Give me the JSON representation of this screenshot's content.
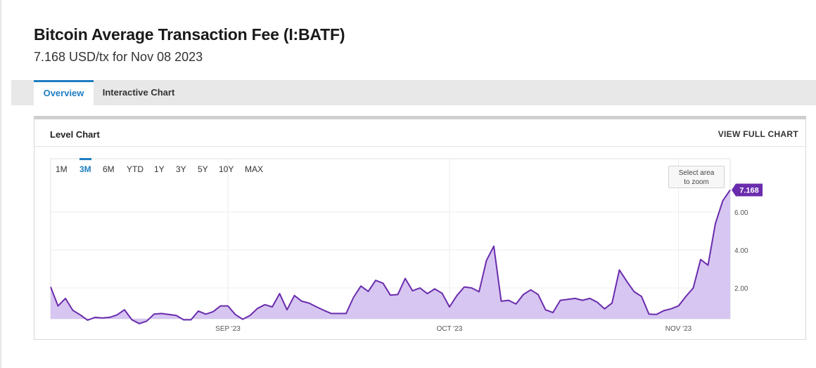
{
  "header": {
    "title": "Bitcoin Average Transaction Fee (I:BATF)",
    "subtitle": "7.168 USD/tx for Nov 08 2023"
  },
  "tabs": [
    {
      "label": "Overview",
      "active": true
    },
    {
      "label": "Interactive Chart",
      "active": false
    }
  ],
  "panel": {
    "title": "Level Chart",
    "view_full_label": "VIEW FULL CHART",
    "ranges": [
      "1M",
      "3M",
      "6M",
      "YTD",
      "1Y",
      "3Y",
      "5Y",
      "10Y",
      "MAX"
    ],
    "active_range": "3M",
    "zoom_hint_line1": "Select area",
    "zoom_hint_line2": "to zoom"
  },
  "colors": {
    "accent": "#1f7ec2",
    "series_line": "#6a2cad",
    "series_fill": "#d6c6f1",
    "last_value_badge": "#6a2cad"
  },
  "chart_data": {
    "type": "area",
    "title": "Level Chart",
    "x_start": "2023-08-08",
    "x_end": "2023-11-08",
    "x_tick_labels": [
      {
        "date": "2023-09-01",
        "label": "SEP '23"
      },
      {
        "date": "2023-10-01",
        "label": "OCT '23"
      },
      {
        "date": "2023-11-01",
        "label": "NOV '23"
      }
    ],
    "y_ticks": [
      2,
      4,
      6
    ],
    "y_tick_labels": [
      "2.00",
      "4.00",
      "6.00"
    ],
    "ylim": [
      0,
      7.5
    ],
    "grid": true,
    "last_value_label": "7.168",
    "series": [
      {
        "name": "",
        "x": [
          "2023-08-08",
          "2023-08-09",
          "2023-08-10",
          "2023-08-11",
          "2023-08-12",
          "2023-08-13",
          "2023-08-14",
          "2023-08-15",
          "2023-08-16",
          "2023-08-17",
          "2023-08-18",
          "2023-08-19",
          "2023-08-20",
          "2023-08-21",
          "2023-08-22",
          "2023-08-23",
          "2023-08-24",
          "2023-08-25",
          "2023-08-26",
          "2023-08-27",
          "2023-08-28",
          "2023-08-29",
          "2023-08-30",
          "2023-08-31",
          "2023-09-01",
          "2023-09-02",
          "2023-09-03",
          "2023-09-04",
          "2023-09-05",
          "2023-09-06",
          "2023-09-07",
          "2023-09-08",
          "2023-09-09",
          "2023-09-10",
          "2023-09-11",
          "2023-09-12",
          "2023-09-13",
          "2023-09-14",
          "2023-09-15",
          "2023-09-16",
          "2023-09-17",
          "2023-09-18",
          "2023-09-19",
          "2023-09-20",
          "2023-09-21",
          "2023-09-22",
          "2023-09-23",
          "2023-09-24",
          "2023-09-25",
          "2023-09-26",
          "2023-09-27",
          "2023-09-28",
          "2023-09-29",
          "2023-09-30",
          "2023-10-01",
          "2023-10-02",
          "2023-10-03",
          "2023-10-04",
          "2023-10-05",
          "2023-10-06",
          "2023-10-07",
          "2023-10-08",
          "2023-10-09",
          "2023-10-10",
          "2023-10-11",
          "2023-10-12",
          "2023-10-13",
          "2023-10-14",
          "2023-10-15",
          "2023-10-16",
          "2023-10-17",
          "2023-10-18",
          "2023-10-19",
          "2023-10-20",
          "2023-10-21",
          "2023-10-22",
          "2023-10-23",
          "2023-10-24",
          "2023-10-25",
          "2023-10-26",
          "2023-10-27",
          "2023-10-28",
          "2023-10-29",
          "2023-10-30",
          "2023-10-31",
          "2023-11-01",
          "2023-11-02",
          "2023-11-03",
          "2023-11-04",
          "2023-11-05",
          "2023-11-06",
          "2023-11-07",
          "2023-11-08"
        ],
        "values": [
          2.05,
          1.05,
          1.45,
          0.82,
          0.58,
          0.3,
          0.45,
          0.42,
          0.45,
          0.58,
          0.85,
          0.32,
          0.12,
          0.25,
          0.62,
          0.65,
          0.6,
          0.55,
          0.32,
          0.32,
          0.78,
          0.62,
          0.75,
          1.05,
          1.05,
          0.6,
          0.35,
          0.55,
          0.92,
          1.12,
          1.0,
          1.7,
          0.85,
          1.6,
          1.3,
          1.2,
          1.0,
          0.82,
          0.65,
          0.65,
          0.65,
          1.5,
          2.1,
          1.82,
          2.4,
          2.25,
          1.62,
          1.65,
          2.5,
          1.85,
          2.0,
          1.7,
          1.95,
          1.72,
          1.0,
          1.6,
          2.05,
          2.0,
          1.8,
          3.45,
          4.2,
          1.3,
          1.35,
          1.15,
          1.65,
          1.9,
          1.65,
          0.85,
          0.7,
          1.35,
          1.4,
          1.45,
          1.35,
          1.45,
          1.25,
          0.9,
          1.2,
          2.95,
          2.35,
          1.8,
          1.55,
          0.62,
          0.6,
          0.8,
          0.9,
          1.05,
          1.55,
          2.0,
          3.5,
          3.2,
          5.4,
          6.6,
          7.168
        ]
      }
    ]
  }
}
